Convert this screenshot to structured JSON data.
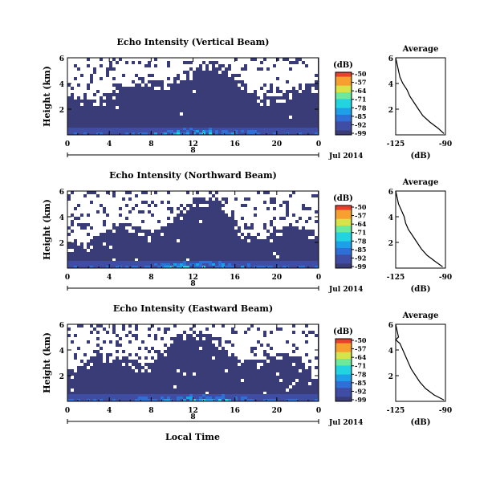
{
  "figure": {
    "xlabel_common": "Local Time",
    "date_label": "Jul 2014",
    "date_axis_tick": "8"
  },
  "colors": {
    "background_navy": "#3a3c78",
    "no_data": "#ffffff",
    "colormap": [
      "#3a3c78",
      "#3f4ea4",
      "#2f6fd8",
      "#1ea0e8",
      "#22d3e0",
      "#6ee89a",
      "#d6e44a",
      "#f7a030",
      "#e8402c"
    ]
  },
  "chart_data": [
    {
      "id": "vertical",
      "type": "heatmap",
      "title": "Echo Intensity (Vertical Beam)",
      "ylabel": "Height (km)",
      "xlim": [
        0,
        24
      ],
      "ylim": [
        0,
        6
      ],
      "xticks": [
        "0",
        "4",
        "8",
        "12",
        "16",
        "20",
        "0"
      ],
      "yticks": [
        "2",
        "4",
        "6"
      ],
      "colorbar": {
        "unit": "(dB)",
        "ticks": [
          "-50",
          "-57",
          "-64",
          "-71",
          "-78",
          "-85",
          "-92",
          "-99"
        ]
      },
      "profile": {
        "title": "Average",
        "xlabel": "(dB)",
        "xticks": [
          "-125",
          "-90"
        ],
        "yticks": [
          "2",
          "4",
          "6"
        ],
        "xlim": [
          -125,
          -90
        ],
        "ylim": [
          0,
          6
        ],
        "height_km": [
          0.1,
          0.5,
          1.0,
          1.5,
          2.0,
          2.5,
          3.0,
          3.5,
          4.0,
          4.5,
          5.0,
          5.5,
          6.0
        ],
        "db": [
          -91,
          -95,
          -101,
          -106,
          -109,
          -112,
          -115,
          -117,
          -120,
          -122,
          -123,
          -124,
          -125
        ]
      }
    },
    {
      "id": "northward",
      "type": "heatmap",
      "title": "Echo Intensity (Northward Beam)",
      "ylabel": "Height (km)",
      "xlim": [
        0,
        24
      ],
      "ylim": [
        0,
        6
      ],
      "xticks": [
        "0",
        "4",
        "8",
        "12",
        "16",
        "20",
        "0"
      ],
      "yticks": [
        "2",
        "4",
        "6"
      ],
      "colorbar": {
        "unit": "(dB)",
        "ticks": [
          "-50",
          "-57",
          "-64",
          "-71",
          "-78",
          "-85",
          "-92",
          "-99"
        ]
      },
      "profile": {
        "title": "Average",
        "xlabel": "(dB)",
        "xticks": [
          "-125",
          "-90"
        ],
        "yticks": [
          "2",
          "4",
          "6"
        ],
        "xlim": [
          -125,
          -90
        ],
        "ylim": [
          0,
          6
        ],
        "height_km": [
          0.1,
          0.5,
          1.0,
          1.5,
          2.0,
          2.5,
          3.0,
          3.5,
          4.0,
          4.5,
          5.0,
          5.5,
          6.0
        ],
        "db": [
          -92,
          -97,
          -103,
          -107,
          -110,
          -113,
          -116,
          -118,
          -119,
          -121,
          -123,
          -124,
          -125
        ]
      }
    },
    {
      "id": "eastward",
      "type": "heatmap",
      "title": "Echo Intensity (Eastward Beam)",
      "ylabel": "Height (km)",
      "xlim": [
        0,
        24
      ],
      "ylim": [
        0,
        6
      ],
      "xticks": [
        "0",
        "4",
        "8",
        "12",
        "16",
        "20",
        "0"
      ],
      "yticks": [
        "2",
        "4",
        "6"
      ],
      "colorbar": {
        "unit": "(dB)",
        "ticks": [
          "-50",
          "-57",
          "-64",
          "-71",
          "-78",
          "-85",
          "-92",
          "-99"
        ]
      },
      "profile": {
        "title": "Average",
        "xlabel": "(dB)",
        "xticks": [
          "-125",
          "-90"
        ],
        "yticks": [
          "2",
          "4",
          "6"
        ],
        "xlim": [
          -125,
          -90
        ],
        "ylim": [
          0,
          6
        ],
        "height_km": [
          0.1,
          0.5,
          1.0,
          1.5,
          2.0,
          2.5,
          3.0,
          3.5,
          4.0,
          4.5,
          4.8,
          5.0,
          6.0
        ],
        "db": [
          -91,
          -98,
          -104,
          -108,
          -111,
          -114,
          -116,
          -118,
          -120,
          -122,
          -125,
          -123,
          -125
        ]
      }
    }
  ]
}
